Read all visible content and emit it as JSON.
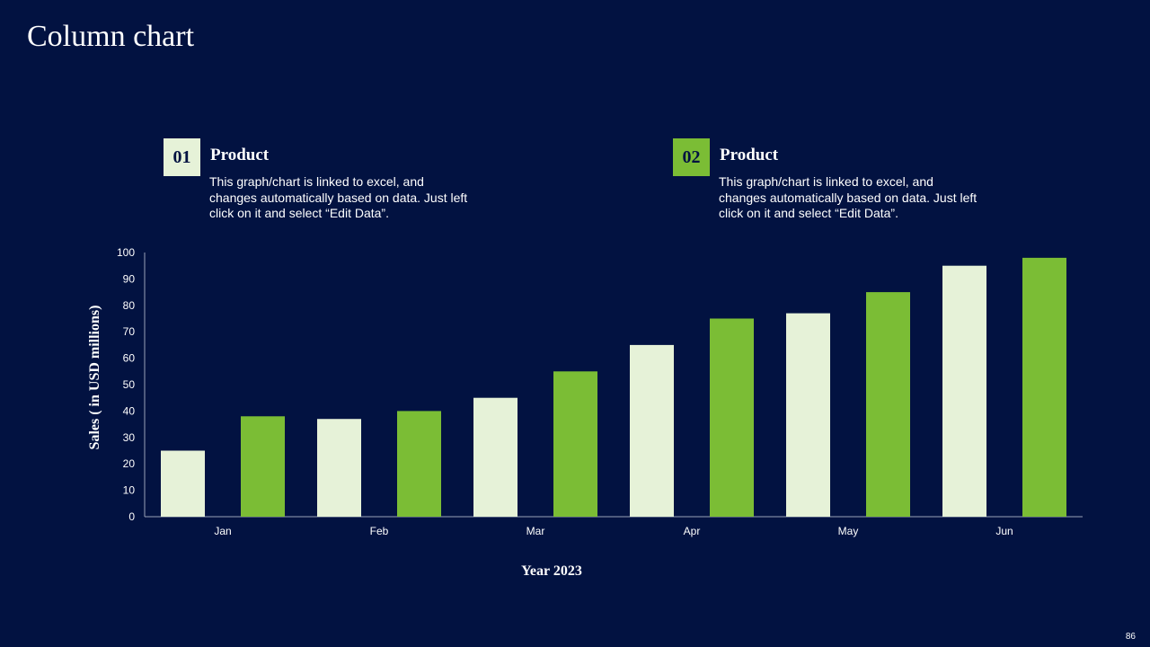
{
  "slide": {
    "title": "Column chart",
    "page_number": "86"
  },
  "legend": [
    {
      "number": "01",
      "heading": "Product",
      "description": "This graph/chart is linked to excel, and changes automatically based on data. Just left click on it and select “Edit Data”.",
      "color": "#e6f2d8"
    },
    {
      "number": "02",
      "heading": "Product",
      "description": "This graph/chart is linked to excel, and changes automatically based on data. Just left click on it and select “Edit Data”.",
      "color": "#7bbd35"
    }
  ],
  "chart_data": {
    "type": "bar",
    "title": "",
    "categories": [
      "Jan",
      "Feb",
      "Mar",
      "Apr",
      "May",
      "Jun"
    ],
    "series": [
      {
        "name": "Product 01",
        "color": "#e6f2d8",
        "values": [
          25,
          37,
          45,
          65,
          77,
          95
        ]
      },
      {
        "name": "Product 02",
        "color": "#7bbd35",
        "values": [
          38,
          40,
          55,
          75,
          85,
          98
        ]
      }
    ],
    "xlabel": "Year 2023",
    "ylabel": "Sales ( in USD millions)",
    "ylim": [
      0,
      100
    ],
    "yticks": [
      0,
      10,
      20,
      30,
      40,
      50,
      60,
      70,
      80,
      90,
      100
    ],
    "grid": false,
    "legend_placement": "top"
  }
}
